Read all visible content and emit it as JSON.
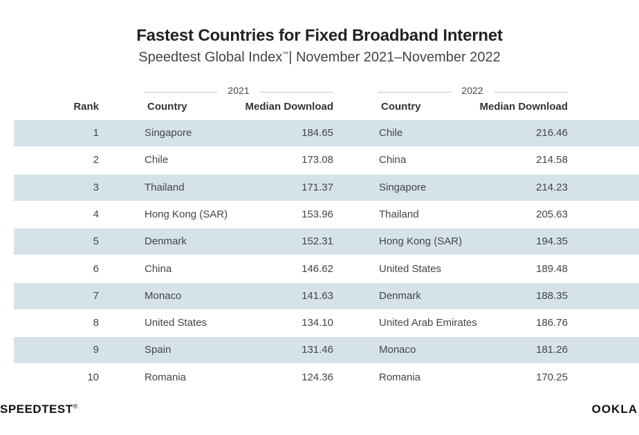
{
  "title": "Fastest Countries for Fixed Broadband Internet",
  "subtitle": "Speedtest Global Index",
  "subtitle_mark": "™",
  "subtitle_range": "| November 2021–November 2022",
  "years": [
    "2021",
    "2022"
  ],
  "headers": {
    "rank": "Rank",
    "country_2021": "Country",
    "download_2021": "Median Download",
    "country_2022": "Country",
    "download_2022": "Median Download"
  },
  "chart_data": {
    "type": "table",
    "columns": [
      "Rank",
      "Country (2021)",
      "Median Download (2021)",
      "Country (2022)",
      "Median Download (2022)"
    ],
    "rows": [
      {
        "rank": "1",
        "country_2021": "Singapore",
        "download_2021": "184.65",
        "country_2022": "Chile",
        "download_2022": "216.46"
      },
      {
        "rank": "2",
        "country_2021": "Chile",
        "download_2021": "173.08",
        "country_2022": "China",
        "download_2022": "214.58"
      },
      {
        "rank": "3",
        "country_2021": "Thailand",
        "download_2021": "171.37",
        "country_2022": "Singapore",
        "download_2022": "214.23"
      },
      {
        "rank": "4",
        "country_2021": "Hong Kong (SAR)",
        "download_2021": "153.96",
        "country_2022": "Thailand",
        "download_2022": "205.63"
      },
      {
        "rank": "5",
        "country_2021": "Denmark",
        "download_2021": "152.31",
        "country_2022": "Hong Kong (SAR)",
        "download_2022": "194.35"
      },
      {
        "rank": "6",
        "country_2021": "China",
        "download_2021": "146.62",
        "country_2022": "United States",
        "download_2022": "189.48"
      },
      {
        "rank": "7",
        "country_2021": "Monaco",
        "download_2021": "141.63",
        "country_2022": "Denmark",
        "download_2022": "188.35"
      },
      {
        "rank": "8",
        "country_2021": "United States",
        "download_2021": "134.10",
        "country_2022": "United Arab Emirates",
        "download_2022": "186.76"
      },
      {
        "rank": "9",
        "country_2021": "Spain",
        "download_2021": "131.46",
        "country_2022": "Monaco",
        "download_2022": "181.26"
      },
      {
        "rank": "10",
        "country_2021": "Romania",
        "download_2021": "124.36",
        "country_2022": "Romania",
        "download_2022": "170.25"
      }
    ]
  },
  "colors": {
    "row_shade": "#d5e3e9",
    "divider": "#c8c8c8"
  },
  "footer": {
    "left_logo": "SPEEDTEST",
    "left_logo_mark": "®",
    "right_logo": "OOKLA"
  }
}
